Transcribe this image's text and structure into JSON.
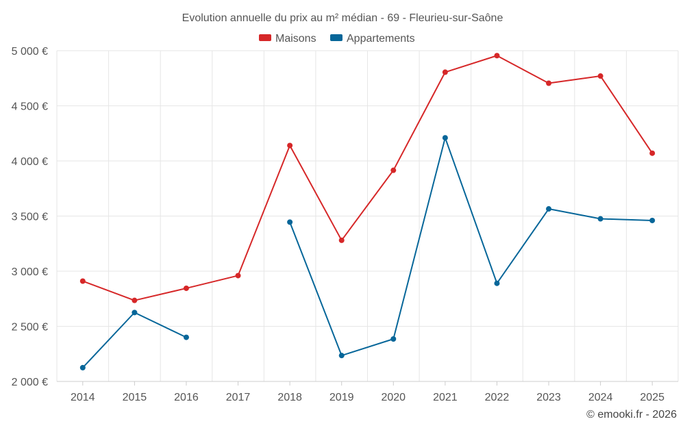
{
  "chart_data": {
    "type": "line",
    "title": "Evolution annuelle du prix au m² médian - 69 - Fleurieu-sur-Saône",
    "categories": [
      "2014",
      "2015",
      "2016",
      "2017",
      "2018",
      "2019",
      "2020",
      "2021",
      "2022",
      "2023",
      "2024",
      "2025"
    ],
    "y_tick_values": [
      2000,
      2500,
      3000,
      3500,
      4000,
      4500,
      5000
    ],
    "y_tick_labels": [
      "2 000 €",
      "2 500 €",
      "3 000 €",
      "3 500 €",
      "4 000 €",
      "4 500 €",
      "5 000 €"
    ],
    "ylim": [
      2000,
      5000
    ],
    "grid": true,
    "legend_position": "top-center",
    "series": [
      {
        "name": "Maisons",
        "color": "#d62728",
        "values": [
          2910,
          2735,
          2845,
          2960,
          4140,
          3280,
          3915,
          4805,
          4955,
          4705,
          4770,
          4070
        ]
      },
      {
        "name": "Appartements",
        "color": "#066699",
        "values": [
          2125,
          2625,
          2400,
          null,
          3445,
          2235,
          2385,
          4210,
          2890,
          3565,
          3475,
          3460
        ]
      }
    ]
  },
  "footer": {
    "credit": "© emooki.fr - 2026"
  }
}
